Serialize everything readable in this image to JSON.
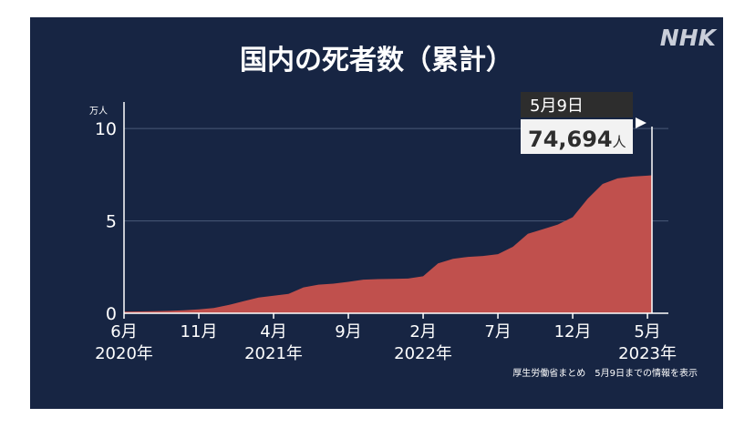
{
  "title": "国内の死者数（累計）",
  "logo": "NHK",
  "source_note": "厚生労働省まとめ　5月9日までの情報を表示",
  "colors": {
    "background": "#172543",
    "area": "#c0504d",
    "text": "#ffffff",
    "grid": "#4a5a78",
    "callout_date_bg": "#2d2d2d",
    "callout_value_bg": "#f2f2f2",
    "logo": "#c9ced9"
  },
  "callout": {
    "date": "5月9日",
    "value": "74,694",
    "unit": "人"
  },
  "chart_data": {
    "type": "area",
    "title": "国内の死者数（累計）",
    "y_unit_label": "万人",
    "yticks": [
      0,
      5,
      10
    ],
    "ylim": [
      0,
      10.5
    ],
    "xlim": [
      0,
      35.3
    ],
    "grid": true,
    "x_ticks": [
      {
        "pos": 0,
        "label": "6月",
        "year": "2020年"
      },
      {
        "pos": 5,
        "label": "11月",
        "year": ""
      },
      {
        "pos": 10,
        "label": "4月",
        "year": "2021年"
      },
      {
        "pos": 15,
        "label": "9月",
        "year": ""
      },
      {
        "pos": 20,
        "label": "2月",
        "year": "2022年"
      },
      {
        "pos": 25,
        "label": "7月",
        "year": ""
      },
      {
        "pos": 30,
        "label": "12月",
        "year": ""
      },
      {
        "pos": 35,
        "label": "5月",
        "year": "2023年"
      }
    ],
    "series": [
      {
        "x": [
          0,
          1,
          2,
          3,
          4,
          5,
          6,
          7,
          8,
          9,
          10,
          11,
          12,
          13,
          14,
          15,
          16,
          17,
          18,
          19,
          20,
          21,
          22,
          23,
          24,
          25,
          26,
          27,
          28,
          29,
          30,
          31,
          32,
          33,
          34,
          35,
          35.3
        ],
        "values": [
          0.09,
          0.1,
          0.11,
          0.13,
          0.16,
          0.21,
          0.28,
          0.45,
          0.65,
          0.85,
          0.95,
          1.05,
          1.4,
          1.55,
          1.6,
          1.7,
          1.82,
          1.85,
          1.86,
          1.88,
          2.0,
          2.7,
          2.95,
          3.05,
          3.1,
          3.2,
          3.6,
          4.3,
          4.55,
          4.8,
          5.2,
          6.2,
          7.0,
          7.3,
          7.4,
          7.45,
          7.47
        ]
      }
    ]
  }
}
